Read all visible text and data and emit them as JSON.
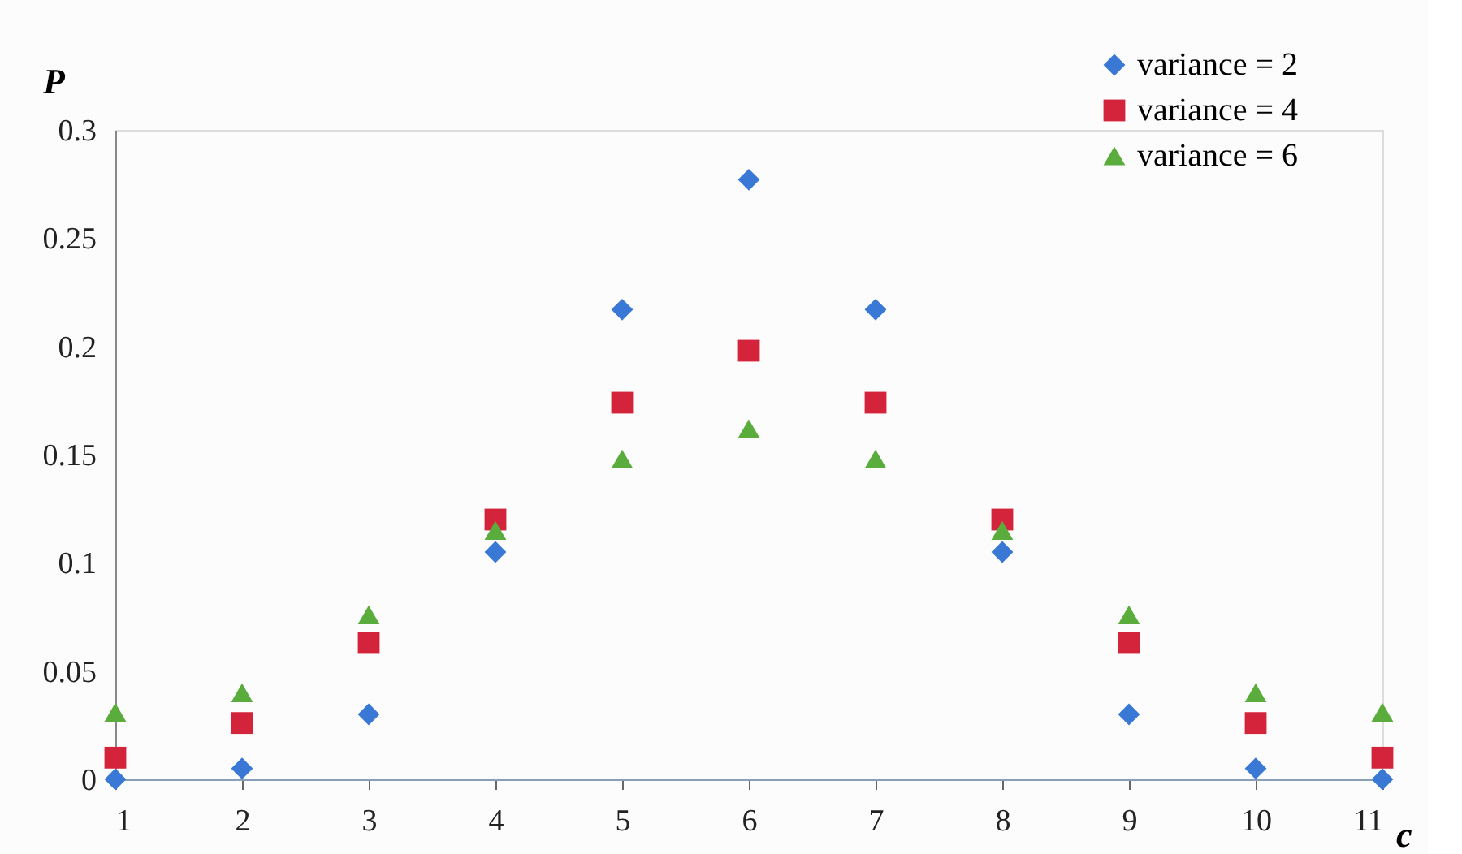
{
  "chart_data": {
    "type": "scatter",
    "xlabel": "c",
    "ylabel": "P",
    "x": [
      1,
      2,
      3,
      4,
      5,
      6,
      7,
      8,
      9,
      10,
      11
    ],
    "series": [
      {
        "name": "variance = 2",
        "color": "#3a78d6",
        "marker": "diamond",
        "values": [
          0.0,
          0.005,
          0.03,
          0.105,
          0.217,
          0.277,
          0.217,
          0.105,
          0.03,
          0.005,
          0.0
        ]
      },
      {
        "name": "variance = 4",
        "color": "#d4243b",
        "marker": "square",
        "values": [
          0.01,
          0.026,
          0.063,
          0.12,
          0.174,
          0.198,
          0.174,
          0.12,
          0.063,
          0.026,
          0.01
        ]
      },
      {
        "name": "variance = 6",
        "color": "#5aad3c",
        "marker": "triangle",
        "values": [
          0.031,
          0.04,
          0.076,
          0.115,
          0.148,
          0.162,
          0.148,
          0.115,
          0.076,
          0.04,
          0.031
        ]
      }
    ],
    "xlim": [
      1,
      11
    ],
    "xticks": [
      1,
      2,
      3,
      4,
      5,
      6,
      7,
      8,
      9,
      10,
      11
    ],
    "ylim": [
      0,
      0.3
    ],
    "yticks": [
      0,
      0.05,
      0.1,
      0.15,
      0.2,
      0.25,
      0.3
    ],
    "grid": false,
    "legend": "top right"
  }
}
